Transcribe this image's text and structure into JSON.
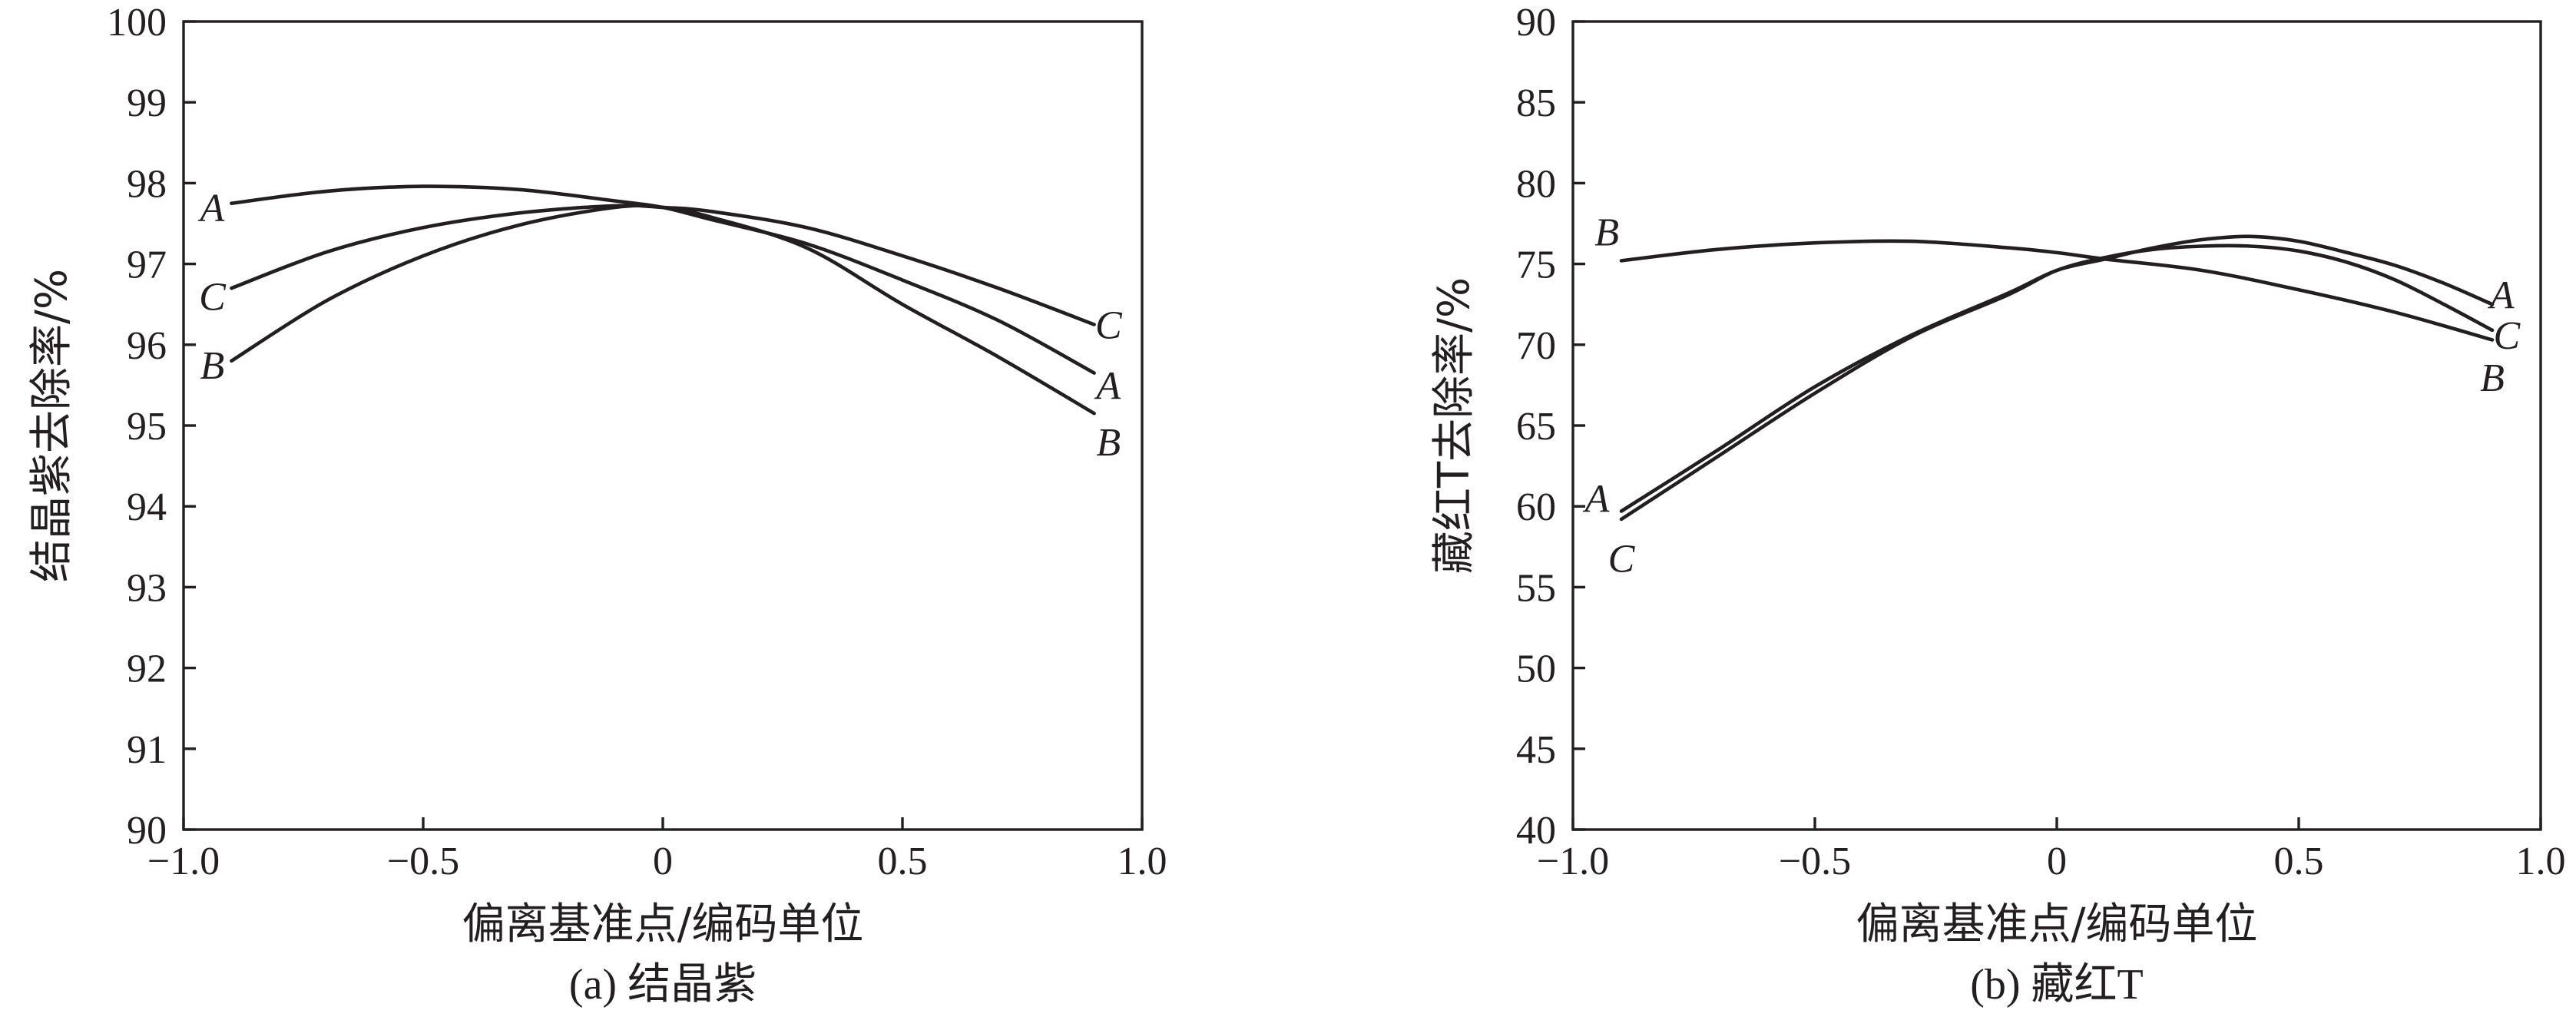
{
  "chart_data": [
    {
      "type": "line",
      "caption": "(a) 结晶紫",
      "xlabel": "偏离基准点/编码单位",
      "ylabel": "结晶紫去除率/%",
      "xlim": [
        -1.0,
        1.0
      ],
      "ylim": [
        90,
        100
      ],
      "xticks": [
        -1.0,
        -0.5,
        0,
        0.5,
        1.0
      ],
      "xtick_labels": [
        "−1.0",
        "−0.5",
        "0",
        "0.5",
        "1.0"
      ],
      "yticks": [
        90,
        91,
        92,
        93,
        94,
        95,
        96,
        97,
        98,
        99,
        100
      ],
      "ytick_labels": [
        "90",
        "91",
        "92",
        "93",
        "94",
        "95",
        "96",
        "97",
        "98",
        "99",
        "100"
      ],
      "grid": false,
      "series": [
        {
          "name": "A",
          "x": [
            -0.9,
            -0.7,
            -0.5,
            -0.3,
            -0.1,
            0.0,
            0.1,
            0.3,
            0.5,
            0.7,
            0.9
          ],
          "y": [
            97.75,
            97.9,
            97.96,
            97.92,
            97.78,
            97.7,
            97.55,
            97.25,
            96.8,
            96.3,
            95.65
          ]
        },
        {
          "name": "B",
          "x": [
            -0.9,
            -0.7,
            -0.5,
            -0.3,
            -0.1,
            0.0,
            0.1,
            0.3,
            0.5,
            0.7,
            0.9
          ],
          "y": [
            95.8,
            96.55,
            97.1,
            97.48,
            97.7,
            97.7,
            97.58,
            97.2,
            96.5,
            95.85,
            95.15
          ]
        },
        {
          "name": "C",
          "x": [
            -0.9,
            -0.7,
            -0.5,
            -0.3,
            -0.1,
            0.0,
            0.1,
            0.3,
            0.5,
            0.7,
            0.9
          ],
          "y": [
            96.7,
            97.15,
            97.45,
            97.63,
            97.72,
            97.7,
            97.65,
            97.45,
            97.1,
            96.7,
            96.25
          ]
        }
      ],
      "series_labels": [
        {
          "series": "A",
          "x": -0.94,
          "y": 97.7
        },
        {
          "series": "C",
          "x": -0.94,
          "y": 96.6
        },
        {
          "series": "B",
          "x": -0.94,
          "y": 95.75
        },
        {
          "series": "C",
          "x": 0.93,
          "y": 96.25
        },
        {
          "series": "A",
          "x": 0.93,
          "y": 95.5
        },
        {
          "series": "B",
          "x": 0.93,
          "y": 94.8
        }
      ]
    },
    {
      "type": "line",
      "caption": "(b) 藏红T",
      "xlabel": "偏离基准点/编码单位",
      "ylabel": "藏红T去除率/%",
      "xlim": [
        -1.0,
        1.0
      ],
      "ylim": [
        40,
        90
      ],
      "xticks": [
        -1.0,
        -0.5,
        0,
        0.5,
        1.0
      ],
      "xtick_labels": [
        "−1.0",
        "−0.5",
        "0",
        "0.5",
        "1.0"
      ],
      "yticks": [
        40,
        45,
        50,
        55,
        60,
        65,
        70,
        75,
        80,
        85,
        90
      ],
      "ytick_labels": [
        "40",
        "45",
        "50",
        "55",
        "60",
        "65",
        "70",
        "75",
        "80",
        "85",
        "90"
      ],
      "grid": false,
      "series": [
        {
          "name": "A",
          "x": [
            -0.9,
            -0.7,
            -0.5,
            -0.3,
            -0.1,
            0.0,
            0.1,
            0.2,
            0.3,
            0.4,
            0.5,
            0.6,
            0.7,
            0.8,
            0.9
          ],
          "y": [
            59.7,
            63.5,
            67.4,
            70.6,
            73.2,
            74.6,
            75.3,
            76.0,
            76.5,
            76.7,
            76.4,
            75.7,
            74.9,
            73.8,
            72.5
          ]
        },
        {
          "name": "B",
          "x": [
            -0.9,
            -0.7,
            -0.5,
            -0.3,
            -0.1,
            0.0,
            0.1,
            0.3,
            0.5,
            0.7,
            0.9
          ],
          "y": [
            75.2,
            75.9,
            76.3,
            76.4,
            76.0,
            75.7,
            75.3,
            74.6,
            73.4,
            72.0,
            70.3
          ]
        },
        {
          "name": "C",
          "x": [
            -0.9,
            -0.7,
            -0.5,
            -0.3,
            -0.1,
            0.0,
            0.1,
            0.2,
            0.3,
            0.4,
            0.5,
            0.6,
            0.7,
            0.8,
            0.9
          ],
          "y": [
            59.2,
            63.1,
            67.0,
            70.5,
            73.1,
            74.6,
            75.4,
            75.9,
            76.1,
            76.1,
            75.8,
            75.1,
            74.0,
            72.5,
            70.9
          ]
        }
      ],
      "series_labels": [
        {
          "series": "B",
          "x": -0.93,
          "y": 77.0
        },
        {
          "series": "A",
          "x": -0.95,
          "y": 60.5
        },
        {
          "series": "C",
          "x": -0.9,
          "y": 56.8
        },
        {
          "series": "A",
          "x": 0.92,
          "y": 73.1
        },
        {
          "series": "C",
          "x": 0.93,
          "y": 70.6
        },
        {
          "series": "B",
          "x": 0.9,
          "y": 68.0
        }
      ]
    }
  ]
}
